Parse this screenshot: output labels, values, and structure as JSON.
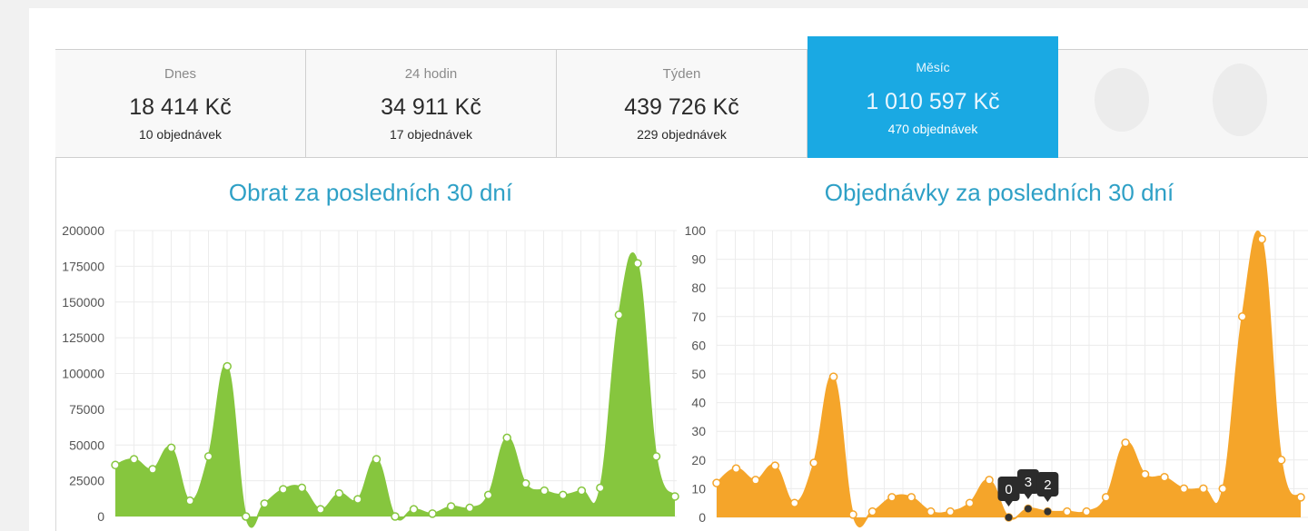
{
  "tabs": [
    {
      "label": "Dnes",
      "value": "18 414 Kč",
      "count": "10 objednávek"
    },
    {
      "label": "24 hodin",
      "value": "34 911 Kč",
      "count": "17 objednávek"
    },
    {
      "label": "Týden",
      "value": "439 726 Kč",
      "count": "229 objednávek"
    },
    {
      "label": "Měsíc",
      "value": "1 010 597 Kč",
      "count": "470 objednávek"
    }
  ],
  "active_tab": "Měsíc",
  "colors": {
    "accent": "#1aa9e3",
    "revenue": "#86c63e",
    "orders": "#f5a52a",
    "title": "#2ea0c6"
  },
  "chart_data": [
    {
      "type": "area",
      "title": "Obrat za posledních 30 dní",
      "ylim": [
        0,
        200000
      ],
      "yticks": [
        0,
        25000,
        50000,
        75000,
        100000,
        125000,
        150000,
        175000,
        200000
      ],
      "grid": true,
      "series": [
        {
          "values": [
            36000,
            40000,
            33000,
            48000,
            11000,
            42000,
            105000,
            0,
            9000,
            19000,
            20000,
            5000,
            16000,
            12000,
            40000,
            0,
            5000,
            2000,
            7000,
            6000,
            15000,
            55000,
            23000,
            18000,
            15000,
            18000,
            20000,
            141000,
            177000,
            42000,
            14000
          ]
        }
      ]
    },
    {
      "type": "area",
      "title": "Objednávky za posledních 30 dní",
      "ylim": [
        0,
        100
      ],
      "yticks": [
        0,
        10,
        20,
        30,
        40,
        50,
        60,
        70,
        80,
        90,
        100
      ],
      "grid": true,
      "series": [
        {
          "values": [
            12,
            17,
            13,
            18,
            5,
            19,
            49,
            1,
            2,
            7,
            7,
            2,
            2,
            5,
            13,
            0,
            3,
            2,
            2,
            2,
            7,
            26,
            15,
            14,
            10,
            10,
            10,
            70,
            97,
            20,
            7
          ]
        }
      ],
      "markers": [
        "0",
        "3",
        "2"
      ]
    }
  ]
}
